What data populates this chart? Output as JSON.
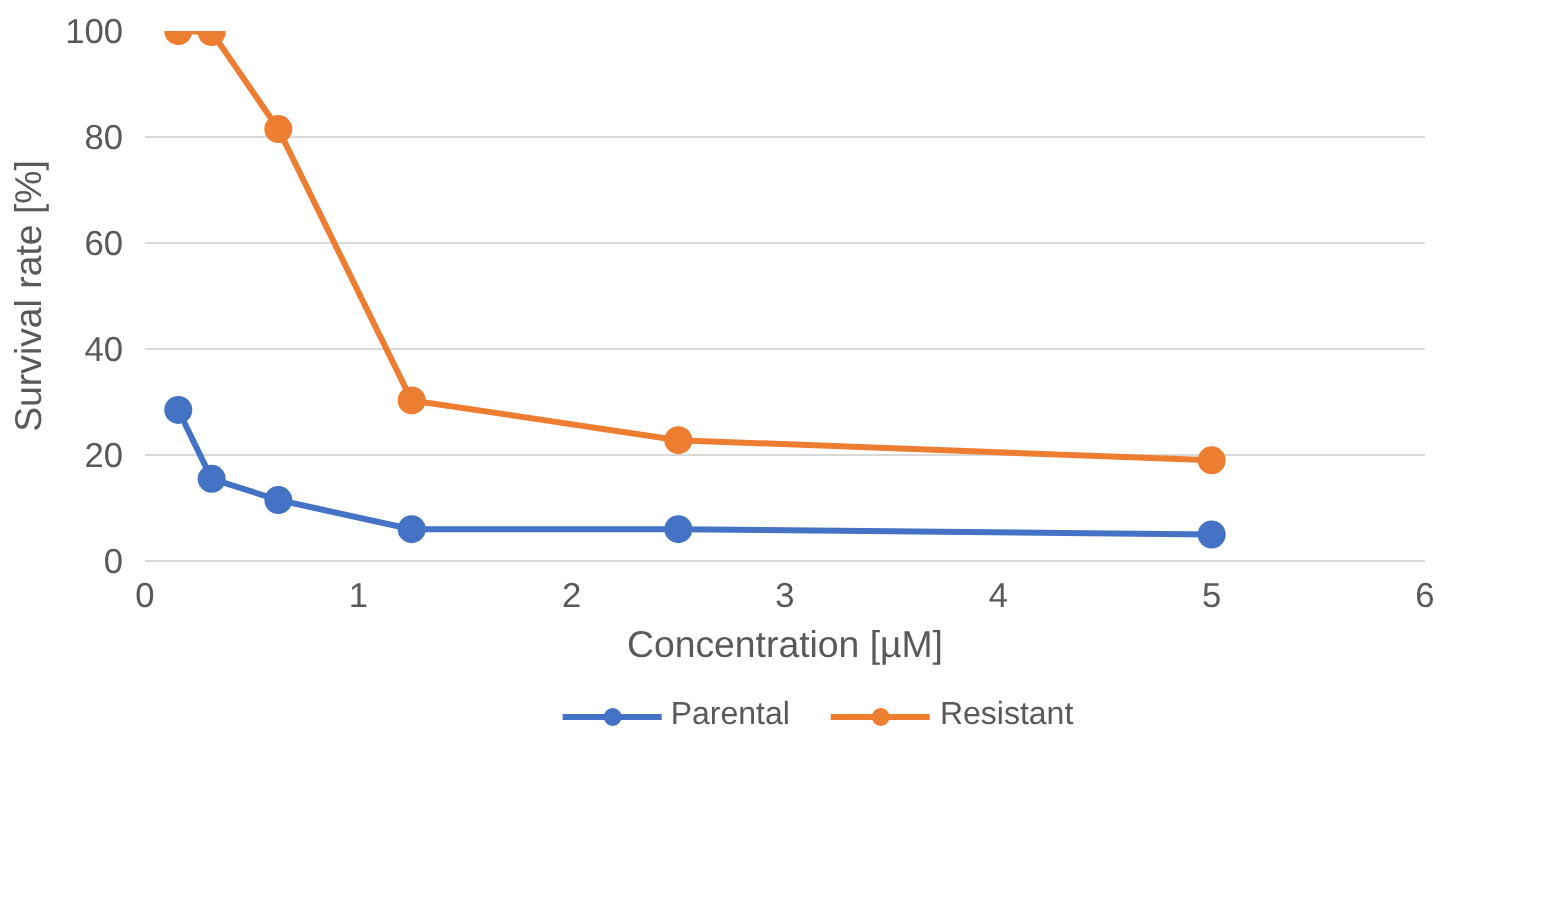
{
  "chart_data": {
    "type": "line",
    "xlabel": "Concentration [µM]",
    "ylabel": "Survival rate [%]",
    "xlim": [
      0,
      6
    ],
    "xticks": [
      0,
      1,
      2,
      3,
      4,
      5,
      6
    ],
    "ylim": [
      0,
      100
    ],
    "yticks": [
      0,
      20,
      40,
      60,
      80,
      100
    ],
    "grid": "y",
    "legend": "bottom",
    "marker": "circle",
    "series": [
      {
        "name": "Parental",
        "color": "#4472c4",
        "x": [
          0.156,
          0.3125,
          0.625,
          1.25,
          2.5,
          5
        ],
        "values": [
          28.5,
          15.5,
          11.5,
          6,
          6,
          5
        ]
      },
      {
        "name": "Resistant",
        "color": "#ed7d31",
        "x": [
          0.156,
          0.3125,
          0.625,
          1.25,
          2.5,
          5
        ],
        "values": [
          100,
          99.8,
          81.5,
          30.3,
          22.8,
          19
        ]
      }
    ]
  }
}
